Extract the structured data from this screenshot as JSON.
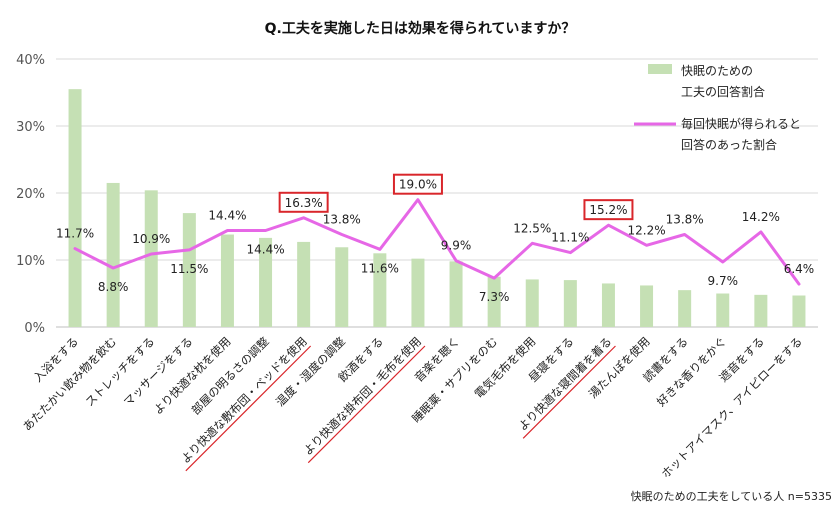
{
  "chart_data": {
    "type": "bar+line",
    "title": "Q.工夫を実施した日は効果を得られていますか？",
    "categories": [
      "入浴をする",
      "あたたかい飲み物を飲む",
      "ストレッチをする",
      "マッサージをする",
      "より快適な枕を使用",
      "部屋の明るさの調整",
      "より快適な敷布団・ベッドを使用",
      "温度・湿度の調整",
      "飲酒をする",
      "より快適な掛布団・毛布を使用",
      "音楽を聴く",
      "睡眠薬・サプリをのむ",
      "電気毛布を使用",
      "昼寝をする",
      "より快適な寝間着を着る",
      "湯たんぽを使用",
      "読書をする",
      "好きな香りをかぐ",
      "遮音をする",
      "ホットアイマスク、アイピローをする"
    ],
    "series": [
      {
        "name": "快眠のための工夫の回答割合",
        "legend_lines": [
          "快眠のための",
          "工夫の回答割合"
        ],
        "type": "bar",
        "color": "#c5e0b4",
        "values": [
          35.5,
          21.5,
          20.4,
          17.0,
          13.8,
          13.3,
          12.7,
          11.9,
          11.0,
          10.2,
          9.8,
          7.5,
          7.1,
          7.0,
          6.5,
          6.2,
          5.5,
          5.0,
          4.8,
          4.7
        ]
      },
      {
        "name": "毎回快眠が得られると回答のあった割合",
        "legend_lines": [
          "毎回快眠が得られると",
          "回答のあった割合"
        ],
        "type": "line",
        "color": "#e667e6",
        "values": [
          11.7,
          8.8,
          10.9,
          11.5,
          14.4,
          14.4,
          16.3,
          13.8,
          11.6,
          19.0,
          9.9,
          7.3,
          12.5,
          11.1,
          15.2,
          12.2,
          13.8,
          9.7,
          14.2,
          6.4
        ],
        "labels": [
          "11.7%",
          "8.8%",
          "10.9%",
          "11.5%",
          "14.4%",
          "14.4%",
          "16.3%",
          "13.8%",
          "11.6%",
          "19.0%",
          "9.9%",
          "7.3%",
          "12.5%",
          "11.1%",
          "15.2%",
          "12.2%",
          "13.8%",
          "9.7%",
          "14.2%",
          "6.4%"
        ]
      }
    ],
    "highlighted_indices": [
      6,
      9,
      14
    ],
    "highlight_color": "#d9262b",
    "ylim": [
      0,
      40
    ],
    "yticks": [
      0,
      10,
      20,
      30,
      40
    ],
    "ytick_labels": [
      "0%",
      "10%",
      "20%",
      "30%",
      "40%"
    ],
    "footnote": "快眠のための工夫をしている人 n=5335",
    "colors": {
      "grid": "#d9d9d9",
      "axis": "#bfbfbf"
    }
  }
}
